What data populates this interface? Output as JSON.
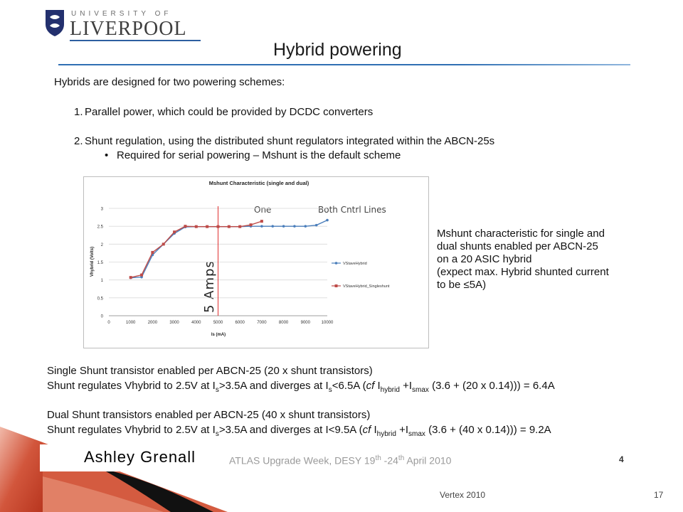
{
  "logo": {
    "top_line": "UNIVERSITY OF",
    "name": "LIVERPOOL"
  },
  "title": "Hybrid powering",
  "intro": "Hybrids are designed for two powering schemes:",
  "list": {
    "item1_num": "1.",
    "item1": "Parallel power, which could be provided by DCDC converters",
    "item2_num": "2.",
    "item2": "Shunt regulation, using the distributed shunt regulators integrated within the ABCN-25s",
    "bullet": "•",
    "sub_item": "Required for serial powering – Mshunt is the default scheme"
  },
  "chart_data": {
    "type": "line",
    "title": "Mshunt Characteristic (single and dual)",
    "xlabel": "Is (mA)",
    "ylabel": "Vhybrid (Volts)",
    "xlim": [
      0,
      10000
    ],
    "ylim": [
      0,
      3
    ],
    "x_ticks": [
      "0",
      "1000",
      "2000",
      "3000",
      "4000",
      "5000",
      "6000",
      "7000",
      "8000",
      "9000",
      "10000"
    ],
    "y_ticks": [
      "0",
      "0.5",
      "1",
      "1.5",
      "2",
      "2.5",
      "3"
    ],
    "grid": true,
    "legend": "right",
    "series": [
      {
        "name": "VStaveHybrid",
        "color": "#4a7ebb",
        "x": [
          1000,
          1500,
          2000,
          2500,
          3000,
          3500,
          4000,
          4500,
          5000,
          5500,
          6000,
          6500,
          7000,
          7500,
          8000,
          8500,
          9000,
          9500,
          10000
        ],
        "y": [
          1.06,
          1.08,
          1.7,
          2.0,
          2.3,
          2.48,
          2.49,
          2.49,
          2.49,
          2.49,
          2.49,
          2.5,
          2.5,
          2.5,
          2.5,
          2.5,
          2.5,
          2.53,
          2.67
        ]
      },
      {
        "name": "VStaveHybrid_Singleshunt",
        "color": "#be4b48",
        "x": [
          1000,
          1500,
          2000,
          2500,
          3000,
          3500,
          4000,
          4500,
          5000,
          5500,
          6000,
          6500,
          7000
        ],
        "y": [
          1.07,
          1.14,
          1.77,
          2.0,
          2.34,
          2.5,
          2.49,
          2.49,
          2.49,
          2.49,
          2.49,
          2.54,
          2.64
        ]
      }
    ],
    "annotations": {
      "one": "One",
      "both": "Both Cntrl Lines",
      "amps": "5 Amps",
      "marker_x": 5000
    }
  },
  "side_note": {
    "line1": "Mshunt characteristic for single and",
    "line2": "dual shunts enabled per ABCN-25",
    "line3": "on a 20 ASIC hybrid",
    "line4": "(expect max. Hybrid shunted current",
    "line5": "to be ≤5A)"
  },
  "single": {
    "line1": "Single Shunt transistor enabled per ABCN-25 (20 x shunt transistors)",
    "l2_a": "Shunt regulates Vhybrid to 2.5V at I",
    "l2_s1": "s",
    "l2_b": ">3.5A and diverges at I",
    "l2_s2": "s",
    "l2_c": "<6.5A (",
    "l2_cf": "cf",
    "l2_d": " I",
    "l2_s3": "hybrid",
    "l2_e": " +I",
    "l2_s4": "smax",
    "l2_f": " (3.6 + (20 x 0.14))) = 6.4A"
  },
  "dual": {
    "line1": "Dual Shunt transistors enabled per ABCN-25 (40 x shunt transistors)",
    "l2_a": "Shunt regulates Vhybrid to 2.5V at I",
    "l2_s1": "s",
    "l2_b": ">3.5A and diverges at I<9.5A (",
    "l2_cf": "cf",
    "l2_d": " I",
    "l2_s3": "hybrid",
    "l2_e": " +I",
    "l2_s4": "smax",
    "l2_f": " (3.6 + (40 x 0.14))) = 9.2A"
  },
  "footer": {
    "author": "Ashley Grenall",
    "conf_a": "ATLAS Upgrade Week, DESY 19",
    "conf_sup1": "th",
    "conf_b": " -24",
    "conf_sup2": "th",
    "conf_c": " April 2010",
    "conf_page": "4",
    "vertex": "Vertex 2010",
    "slide_number": "17"
  },
  "colors": {
    "accent_blue": "#2f6fb3",
    "deco_red": "#c9432b"
  }
}
